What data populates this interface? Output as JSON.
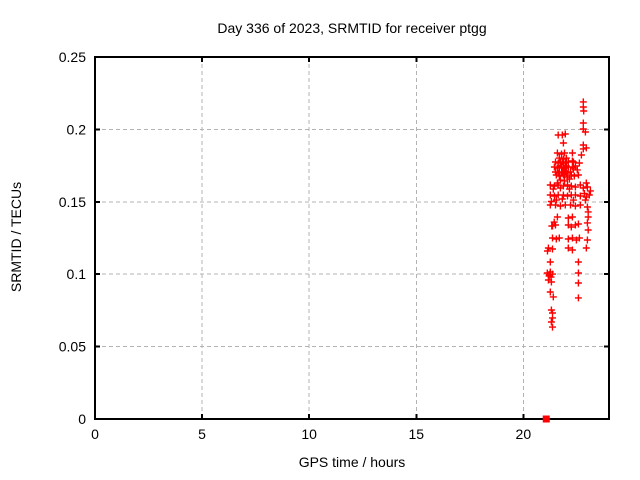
{
  "chart_data": {
    "type": "scatter",
    "title": "Day 336 of 2023, SRMTID for receiver ptgg",
    "xlabel": "GPS time / hours",
    "ylabel": "SRMTID / TECUs",
    "xlim": [
      0,
      24
    ],
    "ylim": [
      0,
      0.25
    ],
    "xticks": [
      0,
      5,
      10,
      15,
      20
    ],
    "xtick_labels": [
      "0",
      "5",
      "10",
      "15",
      "20"
    ],
    "yticks": [
      0,
      0.05,
      0.1,
      0.15,
      0.2,
      0.25
    ],
    "ytick_labels": [
      "0",
      "0.05",
      "0.1",
      "0.15",
      "0.2",
      "0.25"
    ],
    "grid": true,
    "legend": "none",
    "colors": {
      "marker": "#ff0000",
      "grid": "#b3b3b3",
      "axis": "#000000",
      "background": "#ffffff"
    },
    "series": [
      {
        "name": "SRMTID",
        "marker": "plus",
        "color": "#ff0000",
        "points": [
          [
            22.8,
            0.219
          ],
          [
            22.8,
            0.2155
          ],
          [
            22.82,
            0.2127
          ],
          [
            22.8,
            0.2044
          ],
          [
            22.8,
            0.2003
          ],
          [
            22.9,
            0.1982
          ],
          [
            22.94,
            0.1872
          ],
          [
            21.87,
            0.1906
          ],
          [
            22.8,
            0.1892
          ],
          [
            22.8,
            0.1865
          ],
          [
            21.63,
            0.1961
          ],
          [
            21.82,
            0.1961
          ],
          [
            21.96,
            0.1968
          ],
          [
            21.59,
            0.1837
          ],
          [
            21.78,
            0.183
          ],
          [
            21.92,
            0.1837
          ],
          [
            22.29,
            0.1837
          ],
          [
            22.71,
            0.1823
          ],
          [
            21.68,
            0.1802
          ],
          [
            21.87,
            0.1796
          ],
          [
            22.01,
            0.1802
          ],
          [
            21.5,
            0.1775
          ],
          [
            21.63,
            0.1768
          ],
          [
            21.82,
            0.1775
          ],
          [
            21.96,
            0.1768
          ],
          [
            22.1,
            0.1775
          ],
          [
            22.29,
            0.1782
          ],
          [
            22.34,
            0.1775
          ],
          [
            22.62,
            0.1768
          ],
          [
            21.45,
            0.174
          ],
          [
            21.59,
            0.1733
          ],
          [
            21.78,
            0.174
          ],
          [
            21.92,
            0.1733
          ],
          [
            22.1,
            0.174
          ],
          [
            22.34,
            0.1733
          ],
          [
            22.52,
            0.172
          ],
          [
            22.29,
            0.174
          ],
          [
            22.43,
            0.1747
          ],
          [
            21.5,
            0.1706
          ],
          [
            21.63,
            0.1699
          ],
          [
            21.82,
            0.1706
          ],
          [
            22.01,
            0.1699
          ],
          [
            22.2,
            0.1706
          ],
          [
            21.54,
            0.1685
          ],
          [
            21.68,
            0.1678
          ],
          [
            21.87,
            0.1685
          ],
          [
            22.06,
            0.1671
          ],
          [
            22.24,
            0.1685
          ],
          [
            22.38,
            0.1678
          ],
          [
            22.57,
            0.1685
          ],
          [
            21.26,
            0.1616
          ],
          [
            21.45,
            0.1609
          ],
          [
            21.63,
            0.1616
          ],
          [
            21.87,
            0.1609
          ],
          [
            22.06,
            0.1616
          ],
          [
            22.24,
            0.1609
          ],
          [
            22.43,
            0.1602
          ],
          [
            22.66,
            0.1616
          ],
          [
            22.94,
            0.163
          ],
          [
            22.99,
            0.1602
          ],
          [
            21.26,
            0.1547
          ],
          [
            21.45,
            0.154
          ],
          [
            21.63,
            0.1547
          ],
          [
            21.87,
            0.1547
          ],
          [
            22.06,
            0.154
          ],
          [
            22.24,
            0.1547
          ],
          [
            22.43,
            0.1547
          ],
          [
            22.66,
            0.154
          ],
          [
            22.94,
            0.1533
          ],
          [
            21.26,
            0.1478
          ],
          [
            21.5,
            0.1478
          ],
          [
            21.73,
            0.1471
          ],
          [
            21.96,
            0.1478
          ],
          [
            22.2,
            0.1478
          ],
          [
            22.43,
            0.1471
          ],
          [
            22.66,
            0.1478
          ],
          [
            22.99,
            0.1464
          ],
          [
            23.03,
            0.143
          ],
          [
            21.59,
            0.1395
          ],
          [
            22.1,
            0.1388
          ],
          [
            22.29,
            0.1395
          ],
          [
            23.03,
            0.1395
          ],
          [
            21.36,
            0.1333
          ],
          [
            21.5,
            0.134
          ],
          [
            22.1,
            0.134
          ],
          [
            22.24,
            0.1326
          ],
          [
            22.43,
            0.134
          ],
          [
            22.57,
            0.1347
          ],
          [
            22.99,
            0.1354
          ],
          [
            23.03,
            0.1305
          ],
          [
            21.36,
            0.125
          ],
          [
            21.54,
            0.1243
          ],
          [
            21.68,
            0.125
          ],
          [
            22.1,
            0.1243
          ],
          [
            22.29,
            0.125
          ],
          [
            22.48,
            0.1236
          ],
          [
            22.62,
            0.125
          ],
          [
            22.99,
            0.1236
          ],
          [
            21.17,
            0.1181
          ],
          [
            21.36,
            0.1174
          ],
          [
            22.1,
            0.1181
          ],
          [
            22.29,
            0.1167
          ],
          [
            22.94,
            0.1181
          ],
          [
            21.26,
            0.1084
          ],
          [
            22.57,
            0.1084
          ],
          [
            21.12,
            0.1008
          ],
          [
            21.21,
            0.0994
          ],
          [
            21.36,
            0.1001
          ],
          [
            21.17,
            0.096
          ],
          [
            21.31,
            0.0946
          ],
          [
            22.57,
            0.1008
          ],
          [
            22.57,
            0.0939
          ],
          [
            21.26,
            0.0877
          ],
          [
            21.4,
            0.0843
          ],
          [
            22.57,
            0.0836
          ],
          [
            21.31,
            0.0753
          ],
          [
            21.36,
            0.0732
          ],
          [
            21.36,
            0.0698
          ],
          [
            21.31,
            0.067
          ],
          [
            21.36,
            0.0635
          ],
          [
            21.68,
            0.1733
          ],
          [
            21.73,
            0.1768
          ],
          [
            21.78,
            0.1699
          ],
          [
            21.87,
            0.174
          ],
          [
            21.92,
            0.1685
          ],
          [
            21.96,
            0.1713
          ],
          [
            22.01,
            0.1747
          ],
          [
            21.73,
            0.165
          ],
          [
            21.92,
            0.1644
          ],
          [
            22.15,
            0.1657
          ],
          [
            21.59,
            0.163
          ],
          [
            21.4,
            0.1588
          ],
          [
            21.73,
            0.1595
          ],
          [
            22.15,
            0.1588
          ],
          [
            21.31,
            0.1502
          ],
          [
            21.54,
            0.1512
          ],
          [
            21.82,
            0.1519
          ],
          [
            22.34,
            0.1512
          ],
          [
            21.21,
            0.0987
          ],
          [
            21.26,
            0.1015
          ],
          [
            21.24,
            0.1001
          ],
          [
            21.29,
            0.098
          ],
          [
            21.33,
            0.1332
          ],
          [
            21.44,
            0.136
          ],
          [
            21.13,
            0.116
          ],
          [
            22.8,
            0.1595
          ],
          [
            22.85,
            0.1557
          ],
          [
            22.9,
            0.1512
          ],
          [
            23.08,
            0.1547
          ],
          [
            23.13,
            0.1575
          ]
        ]
      }
    ],
    "square_points": [
      [
        21.07,
        0.0
      ]
    ]
  }
}
